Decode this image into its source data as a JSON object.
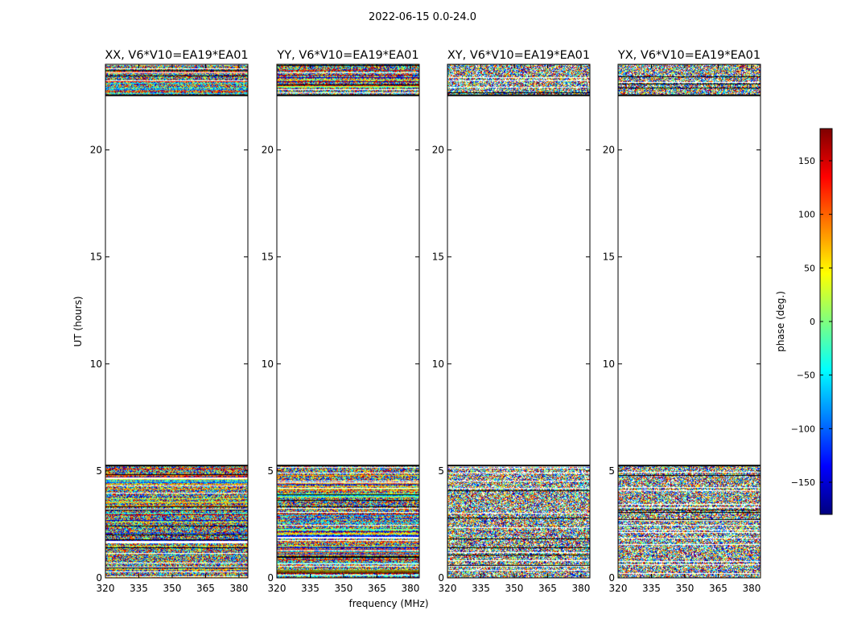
{
  "suptitle": "2022-06-15 0.0-24.0",
  "xlabel": "frequency (MHz)",
  "ylabel": "UT (hours)",
  "colorbar": {
    "label": "phase (deg.)",
    "range": [
      -180,
      180
    ],
    "ticks": [
      150,
      100,
      50,
      0,
      -50,
      -100,
      -150
    ],
    "tick_labels": [
      "150",
      "100",
      "50",
      "0",
      "−50",
      "−100",
      "−150"
    ],
    "colormap": "jet",
    "colors": [
      "#00007f",
      "#0000ff",
      "#007fff",
      "#00ffff",
      "#7fff7f",
      "#ffff00",
      "#ff7f00",
      "#ff0000",
      "#7f0000"
    ]
  },
  "chart_data": [
    {
      "type": "heatmap",
      "title": "XX, V6*V10=EA19*EA01",
      "xlim": [
        320,
        384
      ],
      "ylim": [
        0,
        24
      ],
      "xticks": [
        320,
        335,
        350,
        365,
        380
      ],
      "yticks": [
        0,
        5,
        10,
        15,
        20
      ],
      "data_bands_hours": [
        [
          0,
          5.25
        ],
        [
          22.55,
          24
        ]
      ],
      "empty_gap_hours": [
        5.25,
        22.55
      ],
      "z_label": "phase (deg.)"
    },
    {
      "type": "heatmap",
      "title": "YY, V6*V10=EA19*EA01",
      "xlim": [
        320,
        384
      ],
      "ylim": [
        0,
        24
      ],
      "xticks": [
        320,
        335,
        350,
        365,
        380
      ],
      "yticks": [
        0,
        5,
        10,
        15,
        20
      ],
      "data_bands_hours": [
        [
          0,
          5.25
        ],
        [
          22.55,
          24
        ]
      ],
      "empty_gap_hours": [
        5.25,
        22.55
      ],
      "z_label": "phase (deg.)"
    },
    {
      "type": "heatmap",
      "title": "XY, V6*V10=EA19*EA01",
      "xlim": [
        320,
        384
      ],
      "ylim": [
        0,
        24
      ],
      "xticks": [
        320,
        335,
        350,
        365,
        380
      ],
      "yticks": [
        0,
        5,
        10,
        15,
        20
      ],
      "data_bands_hours": [
        [
          0,
          5.25
        ],
        [
          22.55,
          24
        ]
      ],
      "empty_gap_hours": [
        5.25,
        22.55
      ],
      "z_label": "phase (deg.)"
    },
    {
      "type": "heatmap",
      "title": "YX, V6*V10=EA19*EA01",
      "xlim": [
        320,
        384
      ],
      "ylim": [
        0,
        24
      ],
      "xticks": [
        320,
        335,
        350,
        365,
        380
      ],
      "yticks": [
        0,
        5,
        10,
        15,
        20
      ],
      "data_bands_hours": [
        [
          0,
          5.25
        ],
        [
          22.55,
          24
        ]
      ],
      "empty_gap_hours": [
        5.25,
        22.55
      ],
      "z_label": "phase (deg.)"
    }
  ]
}
